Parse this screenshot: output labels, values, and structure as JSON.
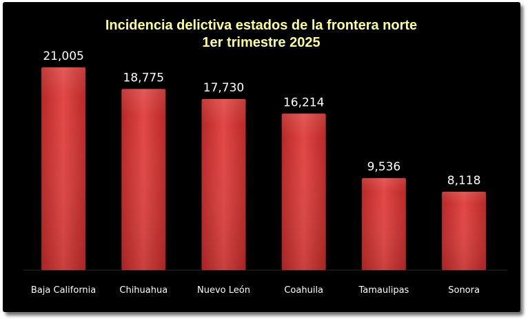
{
  "chart_data": {
    "type": "bar",
    "title": "Incidencia delictiva estados de la frontera norte",
    "subtitle": "1er trimestre 2025",
    "categories": [
      "Baja California",
      "Chihuahua",
      "Nuevo León",
      "Coahuila",
      "Tamaulipas",
      "Sonora"
    ],
    "values": [
      21005,
      18775,
      17730,
      16214,
      9536,
      8118
    ],
    "data_labels": [
      "21,005",
      "18,775",
      "17,730",
      "16,214",
      "9,536",
      "8,118"
    ],
    "xlabel": "",
    "ylabel": "",
    "ylim": [
      0,
      21005
    ],
    "grid": false,
    "legend": "none"
  },
  "colors": {
    "background": "#000000",
    "title": "#ffff99",
    "bar_light": "#f0605e",
    "bar_mid": "#d83a38",
    "bar_dark": "#a81f1e",
    "text": "#ffffff"
  }
}
